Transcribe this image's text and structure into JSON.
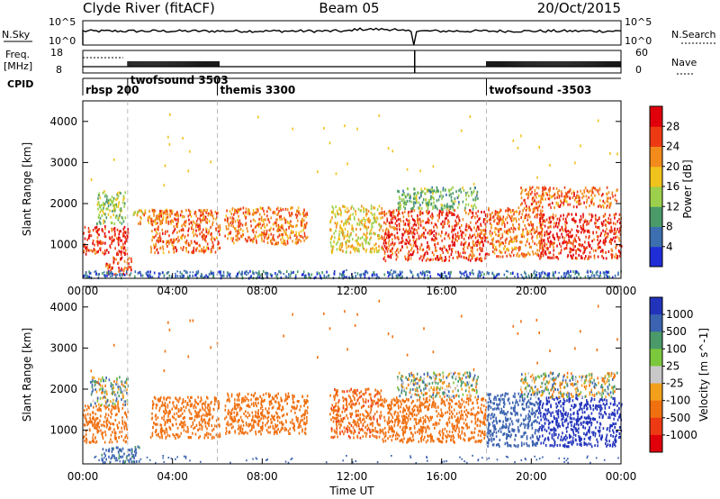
{
  "header": {
    "radar": "Clyde River (fitACF)",
    "beam": "Beam 05",
    "date": "20/Oct/2015"
  },
  "strip_panels": {
    "nsky": {
      "left_label": "N.Sky",
      "left_ticks": [
        "10^5",
        "10^0"
      ],
      "right_label": "N.Search",
      "right_ticks": [
        "10^5",
        "10^0"
      ]
    },
    "freq": {
      "left_label": "Freq.",
      "left_unit": "[MHz]",
      "left_ticks": [
        "18",
        "8"
      ],
      "right_label": "Nave",
      "right_ticks": [
        "60",
        "0"
      ]
    },
    "cpid": {
      "label": "CPID",
      "modes": [
        {
          "name": "rbsp 200",
          "start_hour": 0
        },
        {
          "name": "twofsound 3503",
          "start_hour": 2
        },
        {
          "name": "themis 3300",
          "start_hour": 6
        },
        {
          "name": "twofsound -3503",
          "start_hour": 18
        }
      ]
    }
  },
  "chart_data": [
    {
      "type": "heatmap",
      "title": "",
      "xlabel": "",
      "ylabel": "Slant Range [km]",
      "xlim": [
        0,
        24
      ],
      "ylim": [
        180,
        4500
      ],
      "y_ticks": [
        "1000",
        "2000",
        "3000",
        "4000"
      ],
      "x_ticks": [
        "00:00",
        "04:00",
        "08:00",
        "12:00",
        "16:00",
        "20:00",
        "00:00"
      ],
      "colorbar": {
        "label": "Power [dB]",
        "ticks": [
          "4",
          "8",
          "12",
          "16",
          "20",
          "24",
          "28"
        ],
        "range": [
          0,
          32
        ],
        "colors": [
          "#1f2dd6",
          "#3b6fb0",
          "#4a9a6a",
          "#9ccf4c",
          "#f0c21c",
          "#f28a1c",
          "#ee3a14",
          "#e0000c"
        ]
      },
      "scatter_bands": [
        {
          "t0": 0.0,
          "t1": 2.0,
          "r0": 750,
          "r1": 1450,
          "val": 27
        },
        {
          "t0": 0.6,
          "t1": 1.9,
          "r0": 1500,
          "r1": 2300,
          "val": 14
        },
        {
          "t0": 1.0,
          "t1": 2.2,
          "r0": 250,
          "r1": 700,
          "val": 26
        },
        {
          "t0": 2.2,
          "t1": 4.0,
          "r0": 1500,
          "r1": 1850,
          "val": 20
        },
        {
          "t0": 3.0,
          "t1": 6.1,
          "r0": 800,
          "r1": 1850,
          "val": 24
        },
        {
          "t0": 6.3,
          "t1": 10.0,
          "r0": 1000,
          "r1": 1900,
          "val": 23
        },
        {
          "t0": 11.0,
          "t1": 13.3,
          "r0": 800,
          "r1": 1950,
          "val": 18
        },
        {
          "t0": 13.3,
          "t1": 18.0,
          "r0": 600,
          "r1": 1850,
          "val": 26
        },
        {
          "t0": 14.0,
          "t1": 17.6,
          "r0": 1850,
          "r1": 2400,
          "val": 12
        },
        {
          "t0": 18.0,
          "t1": 20.5,
          "r0": 700,
          "r1": 1900,
          "val": 23
        },
        {
          "t0": 20.3,
          "t1": 24.0,
          "r0": 650,
          "r1": 1750,
          "val": 27
        },
        {
          "t0": 19.5,
          "t1": 23.8,
          "r0": 1900,
          "r1": 2400,
          "val": 24
        },
        {
          "t0": 0.0,
          "t1": 24.0,
          "r0": 180,
          "r1": 350,
          "val": 6
        }
      ]
    },
    {
      "type": "heatmap",
      "title": "",
      "xlabel": "Time UT",
      "ylabel": "Slant Range [km]",
      "xlim": [
        0,
        24
      ],
      "ylim": [
        180,
        4500
      ],
      "y_ticks": [
        "1000",
        "2000",
        "3000",
        "4000"
      ],
      "x_ticks": [
        "00:00",
        "04:00",
        "08:00",
        "12:00",
        "16:00",
        "20:00",
        "00:00"
      ],
      "colorbar": {
        "label": "Velocity [m s^-1]",
        "ticks": [
          "1000",
          "500",
          "100",
          "25",
          "-25",
          "-100",
          "-500",
          "-1000"
        ],
        "colors": [
          "#2233bb",
          "#3b63b0",
          "#4a9a6a",
          "#7cc83c",
          "#c8c8c8",
          "#f2a01c",
          "#f07010",
          "#ee3a14",
          "#e0000c"
        ]
      },
      "scatter_bands": [
        {
          "t0": 0.0,
          "t1": 2.0,
          "r0": 700,
          "r1": 1600,
          "val": -300
        },
        {
          "t0": 0.3,
          "t1": 2.0,
          "r0": 1600,
          "r1": 2300,
          "val": 30
        },
        {
          "t0": 0.8,
          "t1": 2.5,
          "r0": 200,
          "r1": 600,
          "val": 200
        },
        {
          "t0": 3.0,
          "t1": 6.1,
          "r0": 800,
          "r1": 1800,
          "val": -300
        },
        {
          "t0": 6.3,
          "t1": 10.0,
          "r0": 900,
          "r1": 1900,
          "val": -300
        },
        {
          "t0": 11.0,
          "t1": 13.3,
          "r0": 800,
          "r1": 2000,
          "val": -400
        },
        {
          "t0": 13.3,
          "t1": 18.0,
          "r0": 700,
          "r1": 1800,
          "val": -300
        },
        {
          "t0": 14.0,
          "t1": 17.6,
          "r0": 1800,
          "r1": 2400,
          "val": 0
        },
        {
          "t0": 18.0,
          "t1": 20.3,
          "r0": 600,
          "r1": 1900,
          "val": 300
        },
        {
          "t0": 20.3,
          "t1": 24.0,
          "r0": 600,
          "r1": 1800,
          "val": 700
        },
        {
          "t0": 19.5,
          "t1": 23.8,
          "r0": 1800,
          "r1": 2400,
          "val": 0
        }
      ]
    }
  ]
}
